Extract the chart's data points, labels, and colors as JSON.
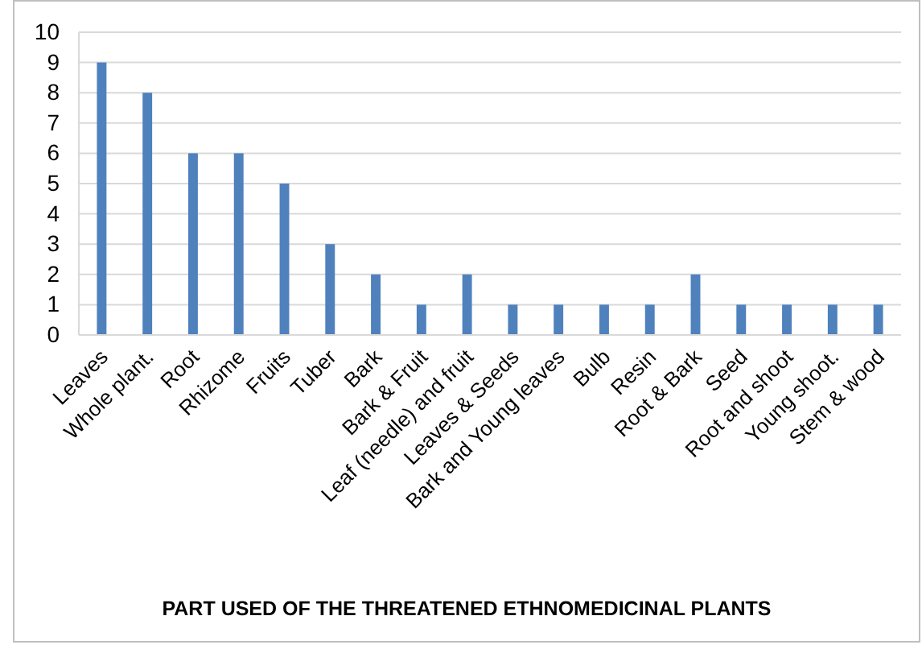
{
  "chart_data": {
    "type": "bar",
    "xlabel": "PART USED OF THE THREATENED ETHNOMEDICINAL PLANTS",
    "categories": [
      "Leaves",
      "Whole plant.",
      "Root",
      "Rhizome",
      "Fruits",
      "Tuber",
      "Bark",
      "Bark & Fruit",
      "Leaf (needle) and fruit",
      "Leaves & Seeds",
      "Bark and Young leaves",
      "Bulb",
      "Resin",
      "Root & Bark",
      "Seed",
      "Root and shoot",
      "Young shoot.",
      "Stem & wood"
    ],
    "values": [
      9,
      8,
      6,
      6,
      5,
      3,
      2,
      1,
      2,
      1,
      1,
      1,
      1,
      2,
      1,
      1,
      1,
      1
    ],
    "color": "#4f81bd",
    "ylim": [
      0,
      10
    ],
    "yticks": [
      0,
      1,
      2,
      3,
      4,
      5,
      6,
      7,
      8,
      9,
      10
    ],
    "grid": "y"
  }
}
